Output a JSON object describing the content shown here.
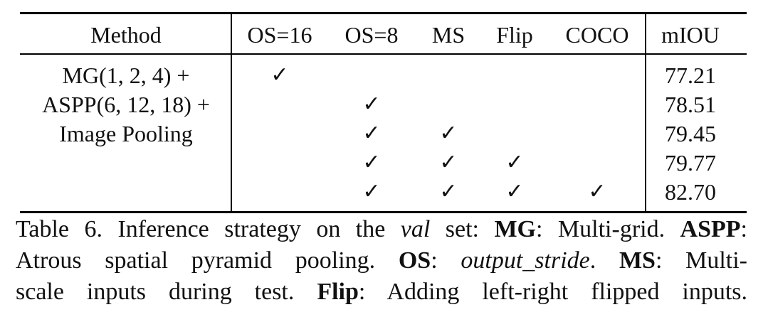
{
  "table": {
    "headers": [
      "Method",
      "OS=16",
      "OS=8",
      "MS",
      "Flip",
      "COCO",
      "mIOU"
    ],
    "method_lines": [
      "MG(1, 2, 4) +",
      "ASPP(6, 12, 18) +",
      "Image Pooling"
    ],
    "check_glyph": "✓",
    "rows": [
      {
        "checks": [
          "✓",
          "",
          "",
          "",
          ""
        ],
        "miou": "77.21"
      },
      {
        "checks": [
          "",
          "✓",
          "",
          "",
          ""
        ],
        "miou": "78.51"
      },
      {
        "checks": [
          "",
          "✓",
          "✓",
          "",
          ""
        ],
        "miou": "79.45"
      },
      {
        "checks": [
          "",
          "✓",
          "✓",
          "✓",
          ""
        ],
        "miou": "79.77"
      },
      {
        "checks": [
          "",
          "✓",
          "✓",
          "✓",
          "✓"
        ],
        "miou": "82.70"
      }
    ]
  },
  "caption": {
    "label": "Table 6. Inference strategy on the ",
    "val": "val",
    "t1": " set: ",
    "mg": "MG",
    "t2": ": Multi-grid. ",
    "aspp": "ASPP",
    "t3": ":",
    "line2a": "Atrous spatial pyramid pooling. ",
    "os": "OS",
    "t4": ": ",
    "output_stride": "output_stride",
    "t5": ". ",
    "ms": "MS",
    "t6": ": Multi-",
    "line3a": "scale inputs during test. ",
    "flip": "Flip",
    "t7": ": Adding left-right flipped inputs."
  }
}
